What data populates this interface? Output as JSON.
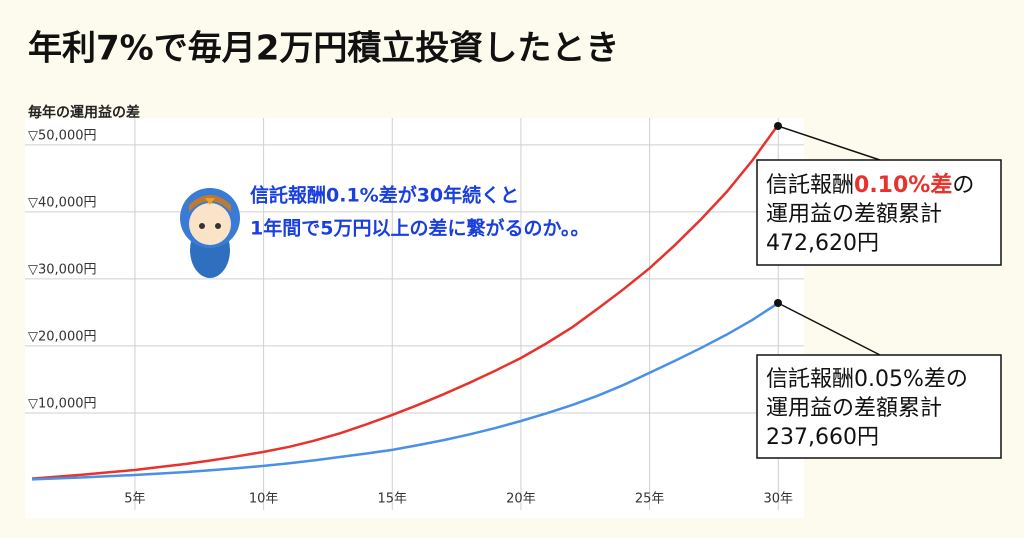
{
  "chart_data": {
    "type": "line",
    "title": "年利7%で毎月2万円積立投資したとき",
    "y_label": "毎年の運用益の差",
    "x": [
      1,
      2,
      3,
      4,
      5,
      6,
      7,
      8,
      9,
      10,
      11,
      12,
      13,
      14,
      15,
      16,
      17,
      18,
      19,
      20,
      21,
      22,
      23,
      24,
      25,
      26,
      27,
      28,
      29,
      30
    ],
    "series": [
      {
        "color": "#e8322c",
        "values": [
          200,
          500,
          800,
          1150,
          1500,
          1950,
          2400,
          2950,
          3550,
          4200,
          4950,
          5900,
          7000,
          8300,
          9700,
          11200,
          12800,
          14500,
          16300,
          18200,
          20400,
          22800,
          25600,
          28500,
          31600,
          35100,
          38900,
          43000,
          47700,
          53000
        ]
      },
      {
        "color": "#4a90e8",
        "values": [
          100,
          250,
          400,
          570,
          750,
          970,
          1200,
          1470,
          1770,
          2100,
          2500,
          2950,
          3450,
          3950,
          4500,
          5200,
          5950,
          6800,
          7750,
          8800,
          9950,
          11200,
          12600,
          14200,
          16000,
          17800,
          19700,
          21700,
          23900,
          26400
        ]
      }
    ],
    "xlim": [
      1,
      31
    ],
    "xticks": [
      {
        "value": 5,
        "label": "5年"
      },
      {
        "value": 10,
        "label": "10年"
      },
      {
        "value": 15,
        "label": "15年"
      },
      {
        "value": 20,
        "label": "20年"
      },
      {
        "value": 25,
        "label": "25年"
      },
      {
        "value": 30,
        "label": "30年"
      }
    ],
    "ylim": [
      0,
      54000
    ],
    "yticks": [
      {
        "value": 10000,
        "label": "▽10,000円"
      },
      {
        "value": 20000,
        "label": "▽20,000円"
      },
      {
        "value": 30000,
        "label": "▽30,000円"
      },
      {
        "value": 40000,
        "label": "▽40,000円"
      },
      {
        "value": 50000,
        "label": "▽50,000円"
      }
    ],
    "grid": true,
    "speech": [
      "信託報酬0.1%差が30年続くと",
      "1年間で5万円以上の差に繋がるのか。。"
    ],
    "callout_red": {
      "prefix": "信託報酬",
      "highlight": "0.10%差",
      "suffix": "の",
      "line2": "運用益の差額累計",
      "line3": "472,620円"
    },
    "callout_blue": {
      "line1": "信託報酬0.05%差の",
      "line2": "運用益の差額累計",
      "line3": "237,660円"
    }
  }
}
